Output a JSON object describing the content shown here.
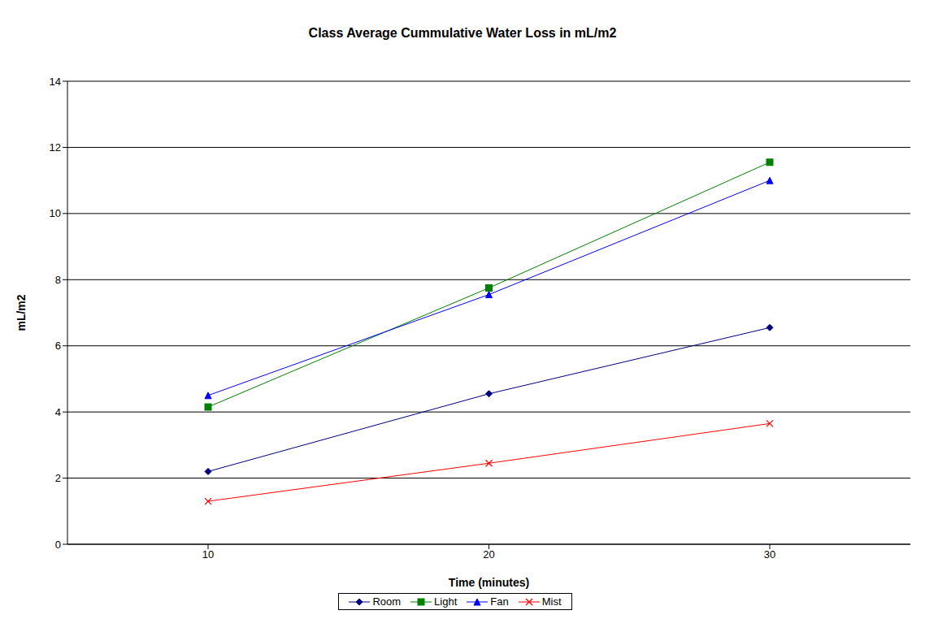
{
  "chart_data": {
    "type": "line",
    "title": "Class Average Cummulative Water Loss in mL/m2",
    "x_label": "Time (minutes)",
    "y_label": "mL/m2",
    "categories": [
      "10",
      "20",
      "30"
    ],
    "series": [
      {
        "name": "Room",
        "color": "#000080",
        "marker": "diamond",
        "values": [
          2.2,
          4.55,
          6.55
        ]
      },
      {
        "name": "Light",
        "color": "#008000",
        "marker": "square",
        "values": [
          4.15,
          7.75,
          11.55
        ]
      },
      {
        "name": "Fan",
        "color": "#0000ff",
        "marker": "triangle",
        "values": [
          4.5,
          7.55,
          11.0
        ]
      },
      {
        "name": "Mist",
        "color": "#ff0000",
        "marker": "x",
        "values": [
          1.3,
          2.45,
          3.65
        ]
      }
    ],
    "ylim": [
      0,
      14
    ],
    "yticks": [
      0,
      2,
      4,
      6,
      8,
      10,
      12,
      14
    ],
    "grid": true,
    "legend": "bottom"
  }
}
